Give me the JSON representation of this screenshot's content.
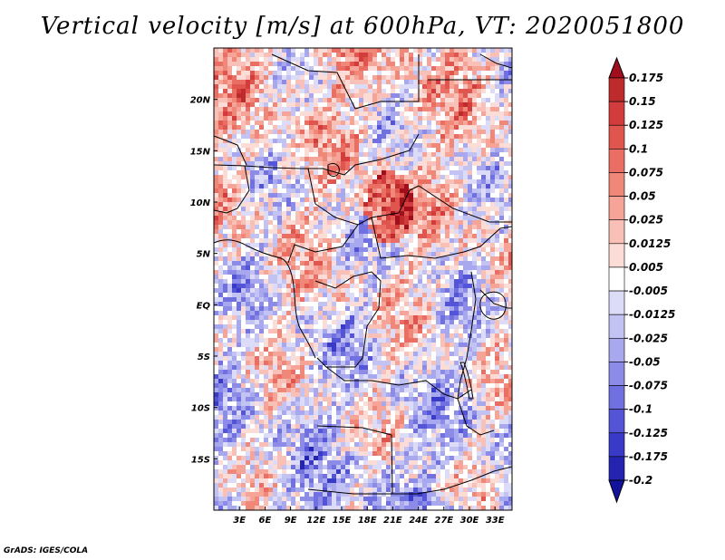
{
  "title": "Vertical velocity [m/s] at 600hPa, VT: 2020051800",
  "credit": "GrADS: IGES/COLA",
  "map": {
    "lon_range": [
      0,
      35
    ],
    "lat_range": [
      -20,
      25
    ],
    "lat_labels": [
      {
        "lat": 20,
        "text": "20N"
      },
      {
        "lat": 15,
        "text": "15N"
      },
      {
        "lat": 10,
        "text": "10N"
      },
      {
        "lat": 5,
        "text": "5N"
      },
      {
        "lat": 0,
        "text": "EQ"
      },
      {
        "lat": -5,
        "text": "5S"
      },
      {
        "lat": -10,
        "text": "10S"
      },
      {
        "lat": -15,
        "text": "15S"
      }
    ],
    "lon_labels": [
      {
        "lon": 3,
        "text": "3E"
      },
      {
        "lon": 6,
        "text": "6E"
      },
      {
        "lon": 9,
        "text": "9E"
      },
      {
        "lon": 12,
        "text": "12E"
      },
      {
        "lon": 15,
        "text": "15E"
      },
      {
        "lon": 18,
        "text": "18E"
      },
      {
        "lon": 21,
        "text": "21E"
      },
      {
        "lon": 24,
        "text": "24E"
      },
      {
        "lon": 27,
        "text": "27E"
      },
      {
        "lon": 30,
        "text": "30E"
      },
      {
        "lon": 33,
        "text": "33E"
      }
    ],
    "field_units": "m/s",
    "field_level": "600hPa"
  },
  "colorbar": {
    "labels": [
      "0.175",
      "0.15",
      "0.125",
      "0.1",
      "0.075",
      "0.05",
      "0.025",
      "0.0125",
      "0.005",
      "-0.005",
      "-0.0125",
      "-0.025",
      "-0.05",
      "-0.075",
      "-0.1",
      "-0.125",
      "-0.175",
      "-0.2"
    ],
    "colors": [
      "#a10f1d",
      "#be2b2d",
      "#d23c3c",
      "#e0554e",
      "#ea6e64",
      "#f0887a",
      "#f5a497",
      "#f8c0b7",
      "#fbdcd6",
      "#ffffff",
      "#dcdcf8",
      "#c3c3f3",
      "#a8a8ee",
      "#8c8ce8",
      "#7070e0",
      "#5454d6",
      "#3a3ac8",
      "#2424b0",
      "#12129a"
    ]
  }
}
